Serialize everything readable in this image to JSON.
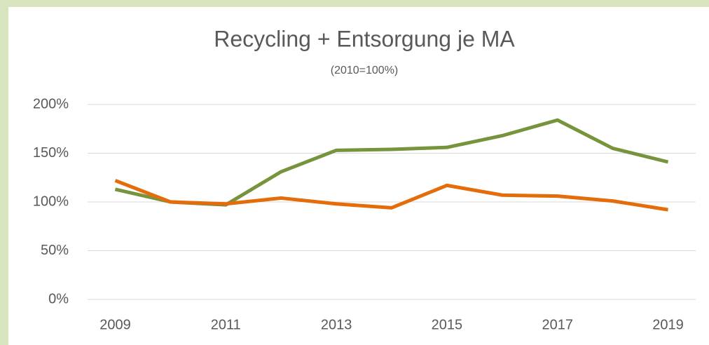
{
  "chart_data": {
    "type": "line",
    "title": "Recycling + Entsorgung je MA",
    "subtitle": "(2010=100%)",
    "x": [
      2009,
      2010,
      2011,
      2012,
      2013,
      2014,
      2015,
      2016,
      2017,
      2018,
      2019
    ],
    "series": [
      {
        "color": "#77933c",
        "values": [
          113,
          100,
          97,
          131,
          153,
          154,
          156,
          168,
          184,
          155,
          141
        ]
      },
      {
        "color": "#e46c0a",
        "values": [
          122,
          100,
          98,
          104,
          98,
          94,
          117,
          107,
          106,
          101,
          92
        ]
      }
    ],
    "xlim": [
      2008.5,
      2019.5
    ],
    "xticks": [
      2009,
      2011,
      2013,
      2015,
      2017,
      2019
    ],
    "ylim": [
      0,
      200
    ],
    "yticks": [
      {
        "value": 0,
        "label": "0%"
      },
      {
        "value": 50,
        "label": "50%"
      },
      {
        "value": 100,
        "label": "100%"
      },
      {
        "value": 150,
        "label": "150%"
      },
      {
        "value": 200,
        "label": "200%"
      }
    ],
    "grid": true
  }
}
